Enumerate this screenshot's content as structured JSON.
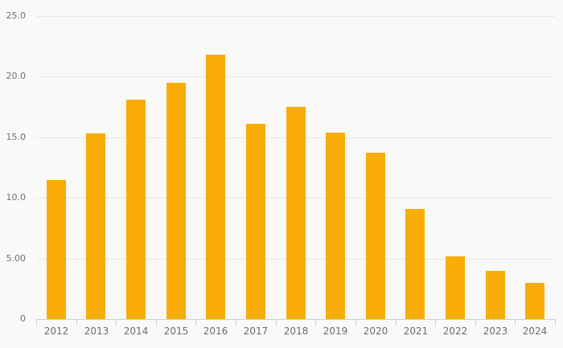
{
  "chart_data": {
    "type": "bar",
    "title": "",
    "xlabel": "",
    "ylabel": "",
    "categories": [
      "2012",
      "2013",
      "2014",
      "2015",
      "2016",
      "2017",
      "2018",
      "2019",
      "2020",
      "2021",
      "2022",
      "2023",
      "2024"
    ],
    "values": [
      11.5,
      15.3,
      18.1,
      19.5,
      21.8,
      16.1,
      17.5,
      15.4,
      13.7,
      9.1,
      5.2,
      4.0,
      3.0
    ],
    "ylim": [
      0,
      25
    ],
    "y_ticks": [
      {
        "value": 0,
        "label": "0"
      },
      {
        "value": 5,
        "label": "5.00"
      },
      {
        "value": 10,
        "label": "10.0"
      },
      {
        "value": 15,
        "label": "15.0"
      },
      {
        "value": 20,
        "label": "20.0"
      },
      {
        "value": 25,
        "label": "25.0"
      }
    ],
    "grid": true,
    "legend": false,
    "colors": {
      "bar": "#f9ac05",
      "background": "#f9f9f9",
      "gridline": "#e7e7e7",
      "axis_line": "#c6d0e2",
      "y_label_text": "#6f6f6f",
      "x_label_text": "#6b6b6b"
    }
  }
}
